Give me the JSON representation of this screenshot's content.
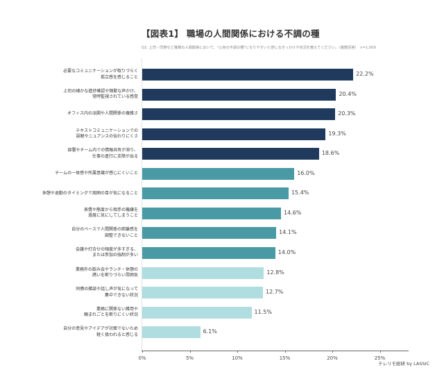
{
  "header": {
    "title": "【図表1】 職場の人間関係における不調の種",
    "subtitle": "Q2. 上司・同僚など職場の人間関係において、\"心身の不調の種\"になりやすいと感じるきっかけや状況を教えてください。（複数回答）　n=1,009"
  },
  "footer": {
    "credit": "テレリモ総研 by LASSIC"
  },
  "colors": {
    "dark": "#1f3a5c",
    "teal": "#4a9aa5",
    "light": "#b0dde0"
  },
  "chart_data": {
    "type": "bar",
    "orientation": "horizontal",
    "title": "【図表1】 職場の人間関係における不調の種",
    "subtitle": "Q2. 上司・同僚など職場の人間関係において、\"心身の不調の種\"になりやすいと感じるきっかけや状況を教えてください。（複数回答） n=1,009",
    "xlabel": "",
    "ylabel": "",
    "xlim": [
      0,
      28
    ],
    "xticks": [
      "0%",
      "5%",
      "10%",
      "15%",
      "20%",
      "25%"
    ],
    "grid": false,
    "legend": null,
    "categories": [
      "必要なコミュニケーションが取りづらく\n孤立感を感じること",
      "上司の細かな進捗確認や頻繁な声かけ、\n常時監視されている感覚",
      "オフィス内の派閥や人間関係の複雑さ",
      "テキストコミュニケーションでの\n誤解やニュアンスの伝わりにくさ",
      "部署やチーム内での情報共有が滞り、\n仕事の進行に支障が出る",
      "チームの一体感や所属意識が感じにくいこと",
      "休憩や退勤のタイミングで周囲の目が気になること",
      "表情や態度から相手の機嫌を\n過度に気にしてしまうこと",
      "自分のペースで人間関係の距離感を\n調整できないこと",
      "会議や打合せの頻度が多すぎる、\nまたは参加の強制が多い",
      "業務外の飲み会やランチ・休憩の\n誘いを断りづらい雰囲気",
      "同僚の雑談や話し声が気になって\n集中できない状況",
      "業務に関係ない雑用や\n頼まれごとを断りにくい状況",
      "自分の意見やアイデアが対面でないため\n軽く扱われると感じる"
    ],
    "values": [
      22.2,
      20.4,
      20.3,
      19.3,
      18.6,
      16.0,
      15.4,
      14.6,
      14.1,
      14.0,
      12.8,
      12.7,
      11.5,
      6.1
    ],
    "value_labels": [
      "22.2%",
      "20.4%",
      "20.3%",
      "19.3%",
      "18.6%",
      "16.0%",
      "15.4%",
      "14.6%",
      "14.1%",
      "14.0%",
      "12.8%",
      "12.7%",
      "11.5%",
      "6.1%"
    ],
    "bar_colors": [
      "#1f3a5c",
      "#1f3a5c",
      "#1f3a5c",
      "#1f3a5c",
      "#1f3a5c",
      "#4a9aa5",
      "#4a9aa5",
      "#4a9aa5",
      "#4a9aa5",
      "#4a9aa5",
      "#b0dde0",
      "#b0dde0",
      "#b0dde0",
      "#b0dde0"
    ]
  }
}
